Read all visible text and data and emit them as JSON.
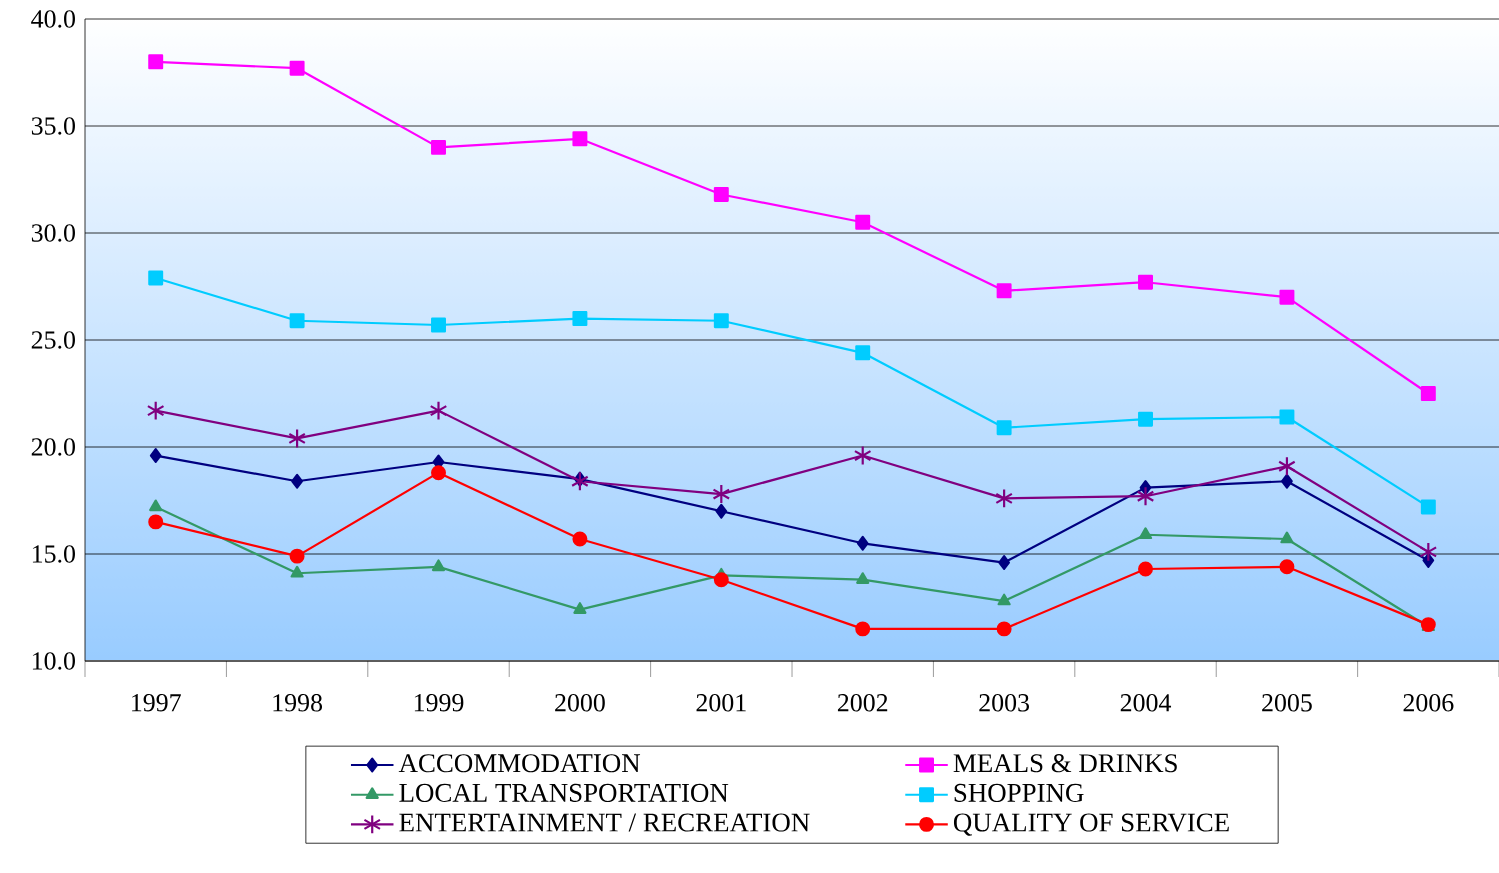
{
  "chart_data": {
    "type": "line",
    "categories": [
      "1997",
      "1998",
      "1999",
      "2000",
      "2001",
      "2002",
      "2003",
      "2004",
      "2005",
      "2006"
    ],
    "series": [
      {
        "name": "ACCOMMODATION",
        "color": "#000080",
        "marker": "diamond",
        "values": [
          19.6,
          18.4,
          19.3,
          18.5,
          17.0,
          15.5,
          14.6,
          18.1,
          18.4,
          14.7
        ]
      },
      {
        "name": "MEALS & DRINKS",
        "color": "#ff00ff",
        "marker": "square",
        "values": [
          38.0,
          37.7,
          34.0,
          34.4,
          31.8,
          30.5,
          27.3,
          27.7,
          27.0,
          22.5
        ]
      },
      {
        "name": "LOCAL TRANSPORTATION",
        "color": "#339966",
        "marker": "triangle",
        "values": [
          17.2,
          14.1,
          14.4,
          12.4,
          14.0,
          13.8,
          12.8,
          15.9,
          15.7,
          11.6
        ]
      },
      {
        "name": "SHOPPING",
        "color": "#00ccff",
        "marker": "square",
        "values": [
          27.9,
          25.9,
          25.7,
          26.0,
          25.9,
          24.4,
          20.9,
          21.3,
          21.4,
          17.2
        ]
      },
      {
        "name": "ENTERTAINMENT / RECREATION",
        "color": "#800080",
        "marker": "cross",
        "values": [
          21.7,
          20.4,
          21.7,
          18.4,
          17.8,
          19.6,
          17.6,
          17.7,
          19.1,
          15.1
        ]
      },
      {
        "name": "QUALITY OF SERVICE",
        "color": "#ff0000",
        "marker": "circle",
        "values": [
          16.5,
          14.9,
          18.8,
          15.7,
          13.8,
          11.5,
          11.5,
          14.3,
          14.4,
          11.7
        ]
      }
    ],
    "ylim": [
      10,
      40
    ],
    "yticks": [
      {
        "value": 10,
        "label": "10.0"
      },
      {
        "value": 15,
        "label": "15.0"
      },
      {
        "value": 20,
        "label": "20.0"
      },
      {
        "value": 25,
        "label": "25.0"
      },
      {
        "value": 30,
        "label": "30.0"
      },
      {
        "value": 35,
        "label": "35.0"
      },
      {
        "value": 40,
        "label": "40.0"
      }
    ],
    "grid": "y",
    "legend": "bottom",
    "line_style": "solid"
  }
}
